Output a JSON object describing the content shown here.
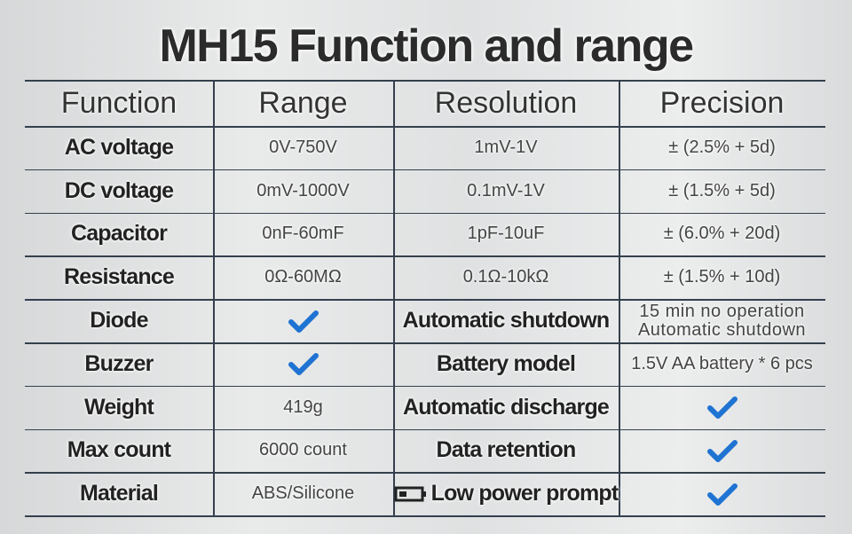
{
  "header": {
    "title": "MH15 Function and range"
  },
  "table": {
    "columns": [
      "Function",
      "Range",
      "Resolution",
      "Precision"
    ],
    "rows": [
      [
        "AC voltage",
        "0V-750V",
        "1mV-1V",
        "± (2.5% + 5d)"
      ],
      [
        "DC voltage",
        "0mV-1000V",
        "0.1mV-1V",
        "± (1.5% + 5d)"
      ],
      [
        "Capacitor",
        "0nF-60mF",
        "1pF-10uF",
        "± (6.0% + 20d)"
      ],
      [
        "Resistance",
        "0Ω-60MΩ",
        "0.1Ω-10kΩ",
        "± (1.5% + 10d)"
      ],
      [
        "Diode",
        true,
        "Automatic shutdown",
        "15 min no operation\nAutomatic shutdown"
      ],
      [
        "Buzzer",
        true,
        "Battery model",
        "1.5V AA battery * 6 pcs"
      ],
      [
        "Weight",
        "419g",
        "Automatic discharge",
        true
      ],
      [
        "Max count",
        "6000 count",
        "Data retention",
        true
      ],
      [
        "Material",
        "ABS/Silicone",
        "Low power prompt",
        true
      ]
    ]
  }
}
